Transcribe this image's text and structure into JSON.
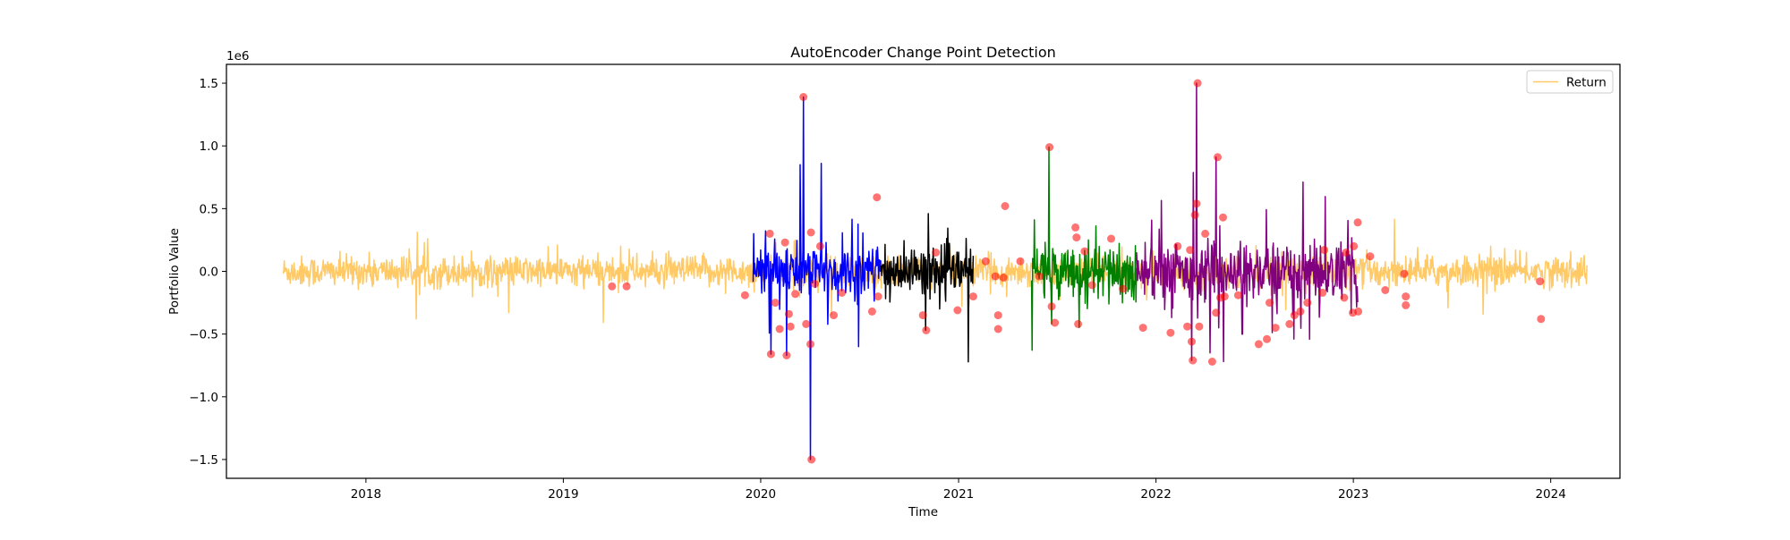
{
  "chart_data": {
    "type": "line",
    "title": "AutoEncoder Change Point Detection",
    "xlabel": "Time",
    "ylabel": "Portfolio Value",
    "y_offset_label": "1e6",
    "xlim": [
      "2017-04-18",
      "2024-05-08"
    ],
    "ylim": [
      -1.65,
      1.65
    ],
    "x_ticks": [
      "2018",
      "2019",
      "2020",
      "2021",
      "2022",
      "2023",
      "2024"
    ],
    "y_ticks": [
      {
        "value": 1.5,
        "label": "1.5"
      },
      {
        "value": 1.0,
        "label": "1.0"
      },
      {
        "value": 0.5,
        "label": "0.5"
      },
      {
        "value": 0.0,
        "label": "0.0"
      },
      {
        "value": -0.5,
        "label": "−0.5"
      },
      {
        "value": -1.0,
        "label": "−1.0"
      },
      {
        "value": -1.5,
        "label": "−1.5"
      }
    ],
    "grid": false,
    "legend": {
      "position": "top-right",
      "entries": [
        {
          "label": "Return",
          "color": "#ffc966"
        }
      ]
    },
    "series": [
      {
        "name": "Return",
        "color": "#ffc966",
        "role": "base",
        "start": "2017-08-01",
        "end": "2024-03-08",
        "amplitude": 0.06,
        "spike_rate": 0.04
      },
      {
        "color": "#0000ff",
        "role": "regime",
        "start": "2019-12-18",
        "end": "2020-08-10",
        "amplitude": 0.1,
        "spike_rate": 0.18,
        "peaks": [
          {
            "x": "2020-03-20",
            "y": 1.39
          },
          {
            "x": "2020-04-02",
            "y": -1.5
          },
          {
            "x": "2020-03-14",
            "y": 0.85
          },
          {
            "x": "2020-04-22",
            "y": 0.86
          },
          {
            "x": "2020-01-20",
            "y": -0.66
          },
          {
            "x": "2020-02-18",
            "y": -0.67
          }
        ]
      },
      {
        "color": "#000000",
        "role": "regime",
        "start": "2020-08-10",
        "end": "2021-01-28",
        "amplitude": 0.09,
        "spike_rate": 0.1,
        "peaks": [
          {
            "x": "2020-11-01",
            "y": -0.47
          },
          {
            "x": "2020-11-06",
            "y": 0.46
          }
        ]
      },
      {
        "color": "#008000",
        "role": "regime",
        "start": "2021-05-16",
        "end": "2021-11-26",
        "amplitude": 0.1,
        "spike_rate": 0.12,
        "peaks": [
          {
            "x": "2021-06-17",
            "y": 0.99
          },
          {
            "x": "2021-06-22",
            "y": -0.42
          }
        ]
      },
      {
        "color": "#800080",
        "role": "regime",
        "start": "2021-11-26",
        "end": "2023-01-09",
        "amplitude": 0.11,
        "spike_rate": 0.14,
        "peaks": [
          {
            "x": "2022-03-17",
            "y": 1.5
          },
          {
            "x": "2022-04-22",
            "y": 0.91
          },
          {
            "x": "2022-03-08",
            "y": -0.71
          },
          {
            "x": "2022-05-06",
            "y": -0.72
          }
        ]
      }
    ],
    "change_points": {
      "color": "#ff0000",
      "points": [
        {
          "x": "2019-04-01",
          "y": -0.12
        },
        {
          "x": "2019-04-28",
          "y": -0.12
        },
        {
          "x": "2019-12-03",
          "y": -0.19
        },
        {
          "x": "2020-01-18",
          "y": 0.3
        },
        {
          "x": "2020-01-20",
          "y": -0.66
        },
        {
          "x": "2020-01-28",
          "y": -0.25
        },
        {
          "x": "2020-02-05",
          "y": -0.46
        },
        {
          "x": "2020-02-15",
          "y": 0.23
        },
        {
          "x": "2020-02-18",
          "y": -0.67
        },
        {
          "x": "2020-02-22",
          "y": -0.34
        },
        {
          "x": "2020-02-25",
          "y": -0.44
        },
        {
          "x": "2020-03-05",
          "y": -0.18
        },
        {
          "x": "2020-03-20",
          "y": 1.39
        },
        {
          "x": "2020-03-25",
          "y": -0.42
        },
        {
          "x": "2020-04-02",
          "y": -0.58
        },
        {
          "x": "2020-04-03",
          "y": 0.31
        },
        {
          "x": "2020-04-04",
          "y": -1.5
        },
        {
          "x": "2020-04-10",
          "y": -0.1
        },
        {
          "x": "2020-04-20",
          "y": 0.2
        },
        {
          "x": "2020-05-15",
          "y": -0.35
        },
        {
          "x": "2020-05-30",
          "y": -0.17
        },
        {
          "x": "2020-07-25",
          "y": -0.32
        },
        {
          "x": "2020-08-03",
          "y": 0.59
        },
        {
          "x": "2020-08-05",
          "y": -0.2
        },
        {
          "x": "2020-10-27",
          "y": -0.35
        },
        {
          "x": "2020-11-02",
          "y": -0.47
        },
        {
          "x": "2020-11-20",
          "y": 0.15
        },
        {
          "x": "2020-12-30",
          "y": -0.31
        },
        {
          "x": "2021-01-28",
          "y": -0.2
        },
        {
          "x": "2021-02-20",
          "y": 0.08
        },
        {
          "x": "2021-03-10",
          "y": -0.04
        },
        {
          "x": "2021-03-15",
          "y": -0.35
        },
        {
          "x": "2021-03-15",
          "y": -0.46
        },
        {
          "x": "2021-03-25",
          "y": -0.05
        },
        {
          "x": "2021-03-28",
          "y": 0.52
        },
        {
          "x": "2021-04-25",
          "y": 0.08
        },
        {
          "x": "2021-05-30",
          "y": -0.04
        },
        {
          "x": "2021-06-18",
          "y": 0.99
        },
        {
          "x": "2021-06-22",
          "y": -0.28
        },
        {
          "x": "2021-06-28",
          "y": -0.41
        },
        {
          "x": "2021-08-05",
          "y": 0.35
        },
        {
          "x": "2021-08-07",
          "y": 0.27
        },
        {
          "x": "2021-08-10",
          "y": -0.42
        },
        {
          "x": "2021-08-22",
          "y": 0.16
        },
        {
          "x": "2021-09-05",
          "y": -0.11
        },
        {
          "x": "2021-10-10",
          "y": 0.26
        },
        {
          "x": "2021-11-01",
          "y": -0.14
        },
        {
          "x": "2021-12-08",
          "y": -0.45
        },
        {
          "x": "2022-01-28",
          "y": -0.49
        },
        {
          "x": "2022-02-10",
          "y": 0.2
        },
        {
          "x": "2022-02-28",
          "y": -0.44
        },
        {
          "x": "2022-03-05",
          "y": 0.17
        },
        {
          "x": "2022-03-08",
          "y": -0.56
        },
        {
          "x": "2022-03-10",
          "y": -0.71
        },
        {
          "x": "2022-03-14",
          "y": 0.45
        },
        {
          "x": "2022-03-17",
          "y": 0.54
        },
        {
          "x": "2022-03-19",
          "y": 1.5
        },
        {
          "x": "2022-03-22",
          "y": -0.44
        },
        {
          "x": "2022-04-02",
          "y": 0.3
        },
        {
          "x": "2022-04-15",
          "y": -0.72
        },
        {
          "x": "2022-04-22",
          "y": -0.33
        },
        {
          "x": "2022-04-25",
          "y": 0.91
        },
        {
          "x": "2022-04-30",
          "y": -0.21
        },
        {
          "x": "2022-05-05",
          "y": 0.43
        },
        {
          "x": "2022-05-08",
          "y": -0.2
        },
        {
          "x": "2022-06-02",
          "y": -0.19
        },
        {
          "x": "2022-07-10",
          "y": -0.58
        },
        {
          "x": "2022-07-25",
          "y": -0.54
        },
        {
          "x": "2022-07-30",
          "y": -0.25
        },
        {
          "x": "2022-08-10",
          "y": -0.45
        },
        {
          "x": "2022-09-05",
          "y": -0.42
        },
        {
          "x": "2022-09-14",
          "y": -0.35
        },
        {
          "x": "2022-09-25",
          "y": -0.32
        },
        {
          "x": "2022-10-08",
          "y": -0.25
        },
        {
          "x": "2022-11-05",
          "y": -0.17
        },
        {
          "x": "2022-11-08",
          "y": 0.17
        },
        {
          "x": "2022-12-15",
          "y": -0.21
        },
        {
          "x": "2022-12-18",
          "y": 0.15
        },
        {
          "x": "2022-12-31",
          "y": -0.33
        },
        {
          "x": "2023-01-02",
          "y": 0.2
        },
        {
          "x": "2023-01-10",
          "y": -0.32
        },
        {
          "x": "2023-01-09",
          "y": 0.39
        },
        {
          "x": "2023-02-01",
          "y": 0.12
        },
        {
          "x": "2023-03-01",
          "y": -0.15
        },
        {
          "x": "2023-04-05",
          "y": -0.02
        },
        {
          "x": "2023-04-08",
          "y": -0.2
        },
        {
          "x": "2023-04-08",
          "y": -0.27
        },
        {
          "x": "2023-12-12",
          "y": -0.08
        },
        {
          "x": "2023-12-14",
          "y": -0.38
        }
      ]
    }
  }
}
